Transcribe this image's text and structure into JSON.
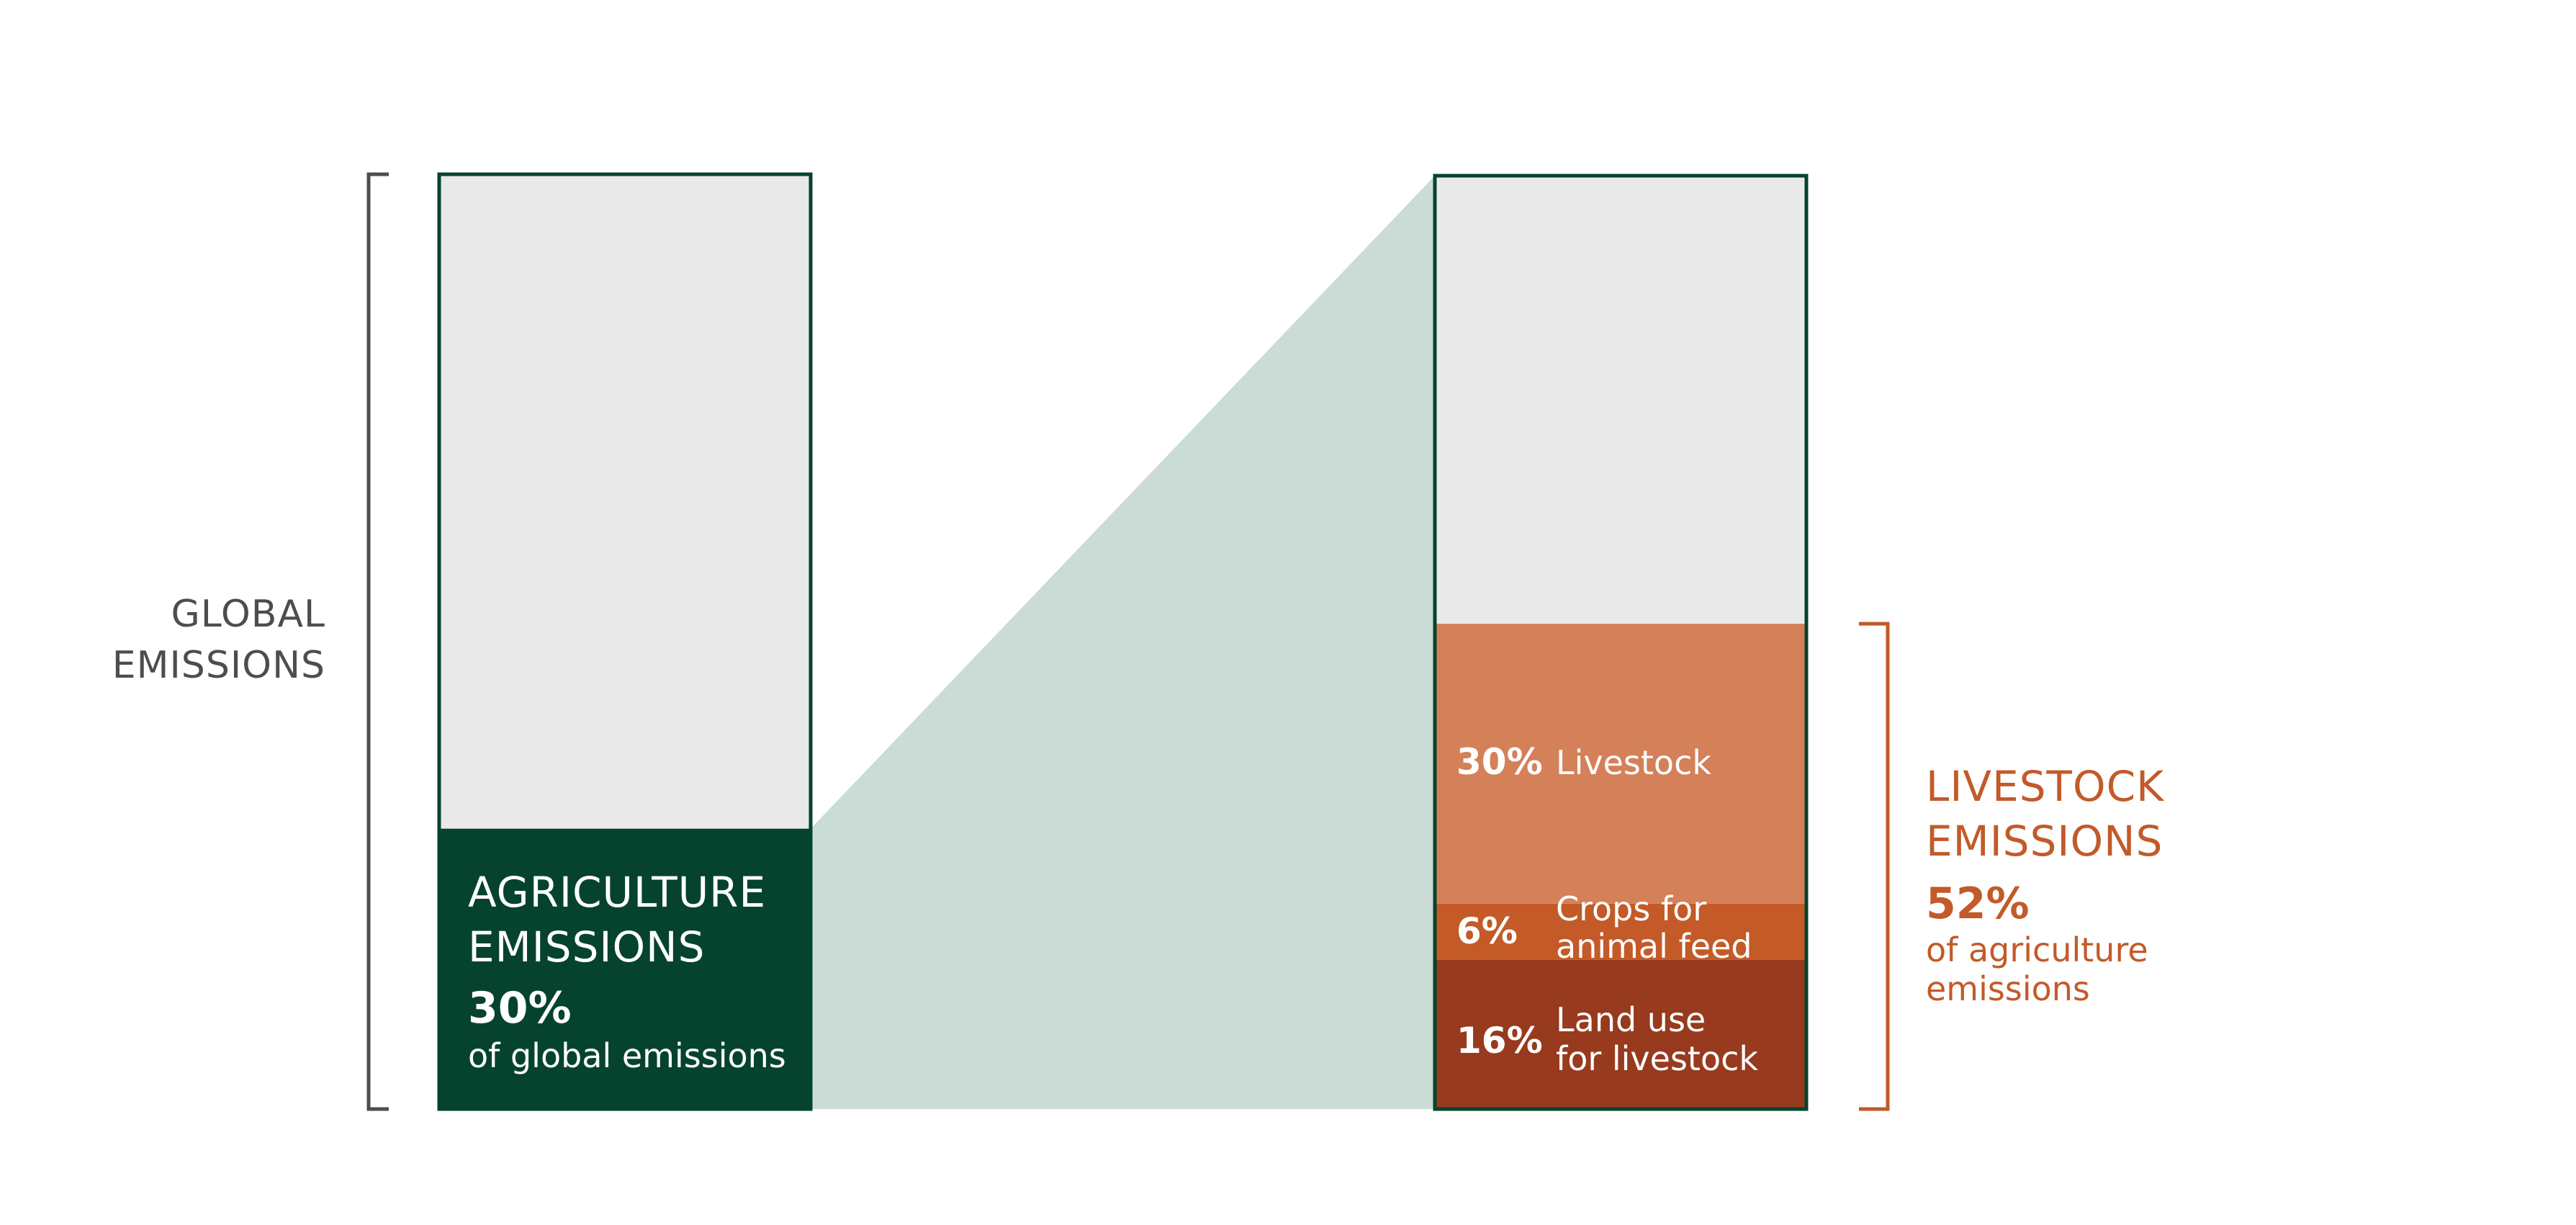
{
  "chart_data": {
    "type": "bar",
    "left_bar": {
      "bracket_label": [
        "GLOBAL",
        "EMISSIONS"
      ],
      "segments": [
        {
          "value": 30,
          "heading": [
            "AGRICULTURE",
            "EMISSIONS"
          ],
          "percent_label": "30%",
          "sub_label": "of global emissions",
          "color": "#05432e"
        },
        {
          "value": 70,
          "color": "#e9e9e9"
        }
      ],
      "outline_color": "#05432e"
    },
    "connector_color": "#cbdbd5",
    "right_bar": {
      "segments": [
        {
          "value": 16,
          "percent_label": "16%",
          "label": [
            "Land use",
            "for livestock"
          ],
          "color": "#973a1e"
        },
        {
          "value": 6,
          "percent_label": "6%",
          "label": [
            "Crops for",
            "animal feed"
          ],
          "color": "#c35a27"
        },
        {
          "value": 30,
          "percent_label": "30%",
          "label": [
            "Livestock"
          ],
          "color": "#d48059"
        },
        {
          "value": 48,
          "color": "#e9e9e9"
        }
      ],
      "outline_color": "#05432e",
      "bracket": {
        "heading": [
          "LIVESTOCK",
          "EMISSIONS"
        ],
        "percent_label": "52%",
        "sub_label": [
          "of agriculture",
          "emissions"
        ],
        "color": "#c25a2a"
      }
    },
    "bracket_color_global": "#4a4f4d"
  }
}
